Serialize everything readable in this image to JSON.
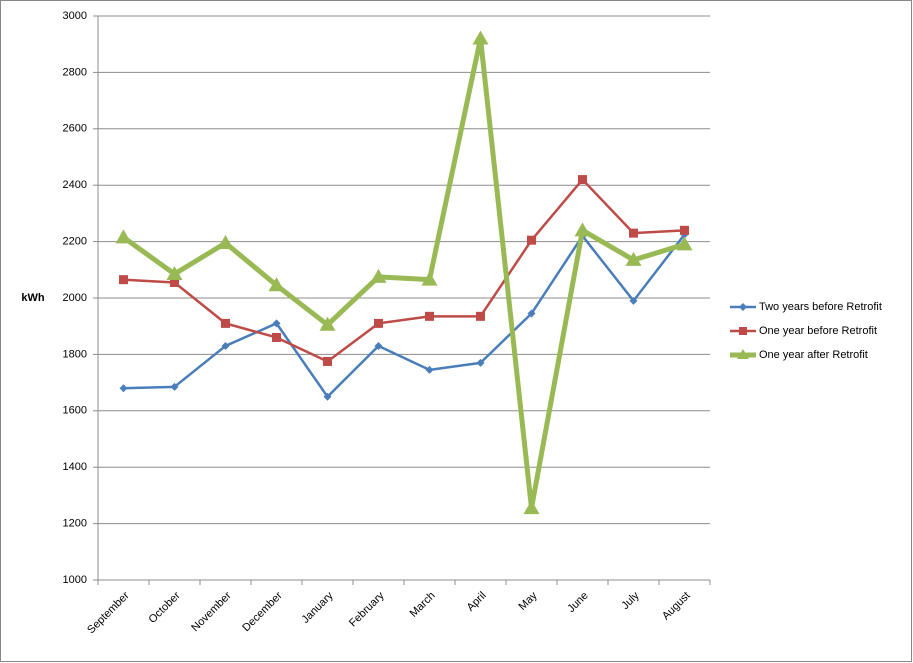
{
  "chart_data": {
    "type": "line",
    "y_label": "kWh",
    "categories": [
      "September",
      "October",
      "November",
      "December",
      "January",
      "February",
      "March",
      "April",
      "May",
      "June",
      "July",
      "August"
    ],
    "series": [
      {
        "name": "Two years before Retrofit",
        "color": "#4a7ebb",
        "marker": "diamond",
        "values": [
          1680,
          1685,
          1830,
          1910,
          1650,
          1830,
          1745,
          1770,
          1945,
          2220,
          1990,
          2225
        ]
      },
      {
        "name": "One year before Retrofit",
        "color": "#be4b48",
        "marker": "square",
        "values": [
          2065,
          2055,
          1910,
          1860,
          1775,
          1910,
          1935,
          1935,
          2205,
          2420,
          2230,
          2240
        ]
      },
      {
        "name": "One year after Retrofit",
        "color": "#98b954",
        "marker": "triangle",
        "values": [
          2215,
          2085,
          2195,
          2045,
          1905,
          2075,
          2065,
          2920,
          1255,
          2240,
          2135,
          2190
        ]
      }
    ],
    "ylim": [
      1000,
      3000
    ],
    "yticks": [
      1000,
      1200,
      1400,
      1600,
      1800,
      2000,
      2200,
      2400,
      2600,
      2800,
      3000
    ],
    "grid": true,
    "legend": "right"
  }
}
